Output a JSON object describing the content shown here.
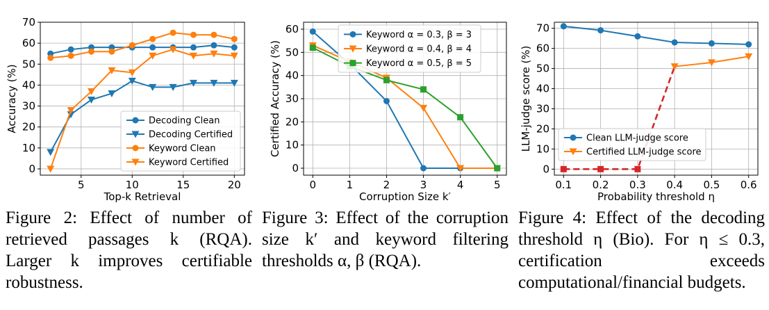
{
  "colors": {
    "blue": "#1f77b4",
    "orange": "#ff7f0e",
    "green": "#2ca02c",
    "red": "#d62728",
    "grid": "#b0b0b0"
  },
  "chart_data": [
    {
      "type": "line",
      "xlabel": "Top-k Retrieval",
      "ylabel": "Accuracy (%)",
      "xlim": [
        1,
        21
      ],
      "ylim": [
        -3,
        70
      ],
      "xticks": [
        5,
        10,
        15,
        20
      ],
      "yticks": [
        0,
        10,
        20,
        30,
        40,
        50,
        60,
        70
      ],
      "grid": true,
      "legend_position": "lower-right",
      "x": [
        2,
        4,
        6,
        8,
        10,
        12,
        14,
        16,
        18,
        20
      ],
      "series": [
        {
          "name": "Decoding Clean",
          "color": "blue",
          "marker": "circle",
          "values": [
            55,
            57,
            58,
            58,
            58,
            58,
            58,
            58,
            59,
            58
          ]
        },
        {
          "name": "Decoding Certified",
          "color": "blue",
          "marker": "triangle-down",
          "values": [
            8,
            26,
            33,
            36,
            42,
            39,
            39,
            41,
            41,
            41
          ]
        },
        {
          "name": "Keyword Clean",
          "color": "orange",
          "marker": "circle",
          "values": [
            53,
            54,
            56,
            56,
            59,
            62,
            65,
            64,
            64,
            62
          ]
        },
        {
          "name": "Keyword Certified",
          "color": "orange",
          "marker": "triangle-down",
          "values": [
            0,
            28,
            37,
            47,
            46,
            54,
            57,
            54,
            55,
            54
          ]
        }
      ]
    },
    {
      "type": "line",
      "xlabel": "Corruption Size k′",
      "ylabel": "Certified Accuracy (%)",
      "xlim": [
        -0.25,
        5.25
      ],
      "ylim": [
        -3,
        63
      ],
      "xticks": [
        0,
        1,
        2,
        3,
        4,
        5
      ],
      "yticks": [
        0,
        10,
        20,
        30,
        40,
        50,
        60
      ],
      "grid": true,
      "legend_position": "top-right",
      "x": [
        0,
        1,
        2,
        3,
        4,
        5
      ],
      "series": [
        {
          "name": "Keyword α = 0.3, β = 3",
          "color": "blue",
          "marker": "circle",
          "values": [
            59,
            45,
            29,
            0,
            0,
            0
          ]
        },
        {
          "name": "Keyword α = 0.4, β = 4",
          "color": "orange",
          "marker": "triangle-down",
          "values": [
            53,
            46,
            39,
            26,
            0,
            0
          ]
        },
        {
          "name": "Keyword α = 0.5, β = 5",
          "color": "green",
          "marker": "square",
          "values": [
            52,
            44,
            38,
            34,
            22,
            0
          ]
        }
      ]
    },
    {
      "type": "line",
      "xlabel": "Probability threshold η",
      "ylabel": "LLM-judge score (%)",
      "xlim": [
        0.075,
        0.625
      ],
      "ylim": [
        -3,
        73
      ],
      "xticks": [
        0.1,
        0.2,
        0.3,
        0.4,
        0.5,
        0.6
      ],
      "yticks": [
        0,
        10,
        20,
        30,
        40,
        50,
        60,
        70
      ],
      "grid": true,
      "legend_position": "center-left",
      "x": [
        0.1,
        0.2,
        0.3,
        0.4,
        0.5,
        0.6
      ],
      "series": [
        {
          "name": "Clean LLM-judge score",
          "color": "blue",
          "marker": "circle",
          "values": [
            71,
            69,
            66,
            63,
            62.5,
            62
          ]
        },
        {
          "name": "Certified LLM-judge score",
          "color": "orange",
          "marker": "triangle-down",
          "values": [
            null,
            null,
            null,
            51,
            53,
            56
          ]
        }
      ],
      "extra_series": {
        "color": "red",
        "marker": "square",
        "style": "dashed",
        "x": [
          0.1,
          0.2,
          0.3,
          0.4
        ],
        "values": [
          0,
          0,
          0,
          51
        ]
      }
    }
  ],
  "captions": [
    {
      "label": "Figure 2:",
      "text": "Effect of number of retrieved passages k (RQA). Larger k improves certifiable robustness."
    },
    {
      "label": "Figure 3:",
      "text": "Effect of the corruption size k′ and keyword filtering thresholds α, β (RQA)."
    },
    {
      "label": "Figure 4:",
      "text": "Effect of the decoding threshold η (Bio). For η ≤ 0.3, certification exceeds computational/financial budgets."
    }
  ]
}
